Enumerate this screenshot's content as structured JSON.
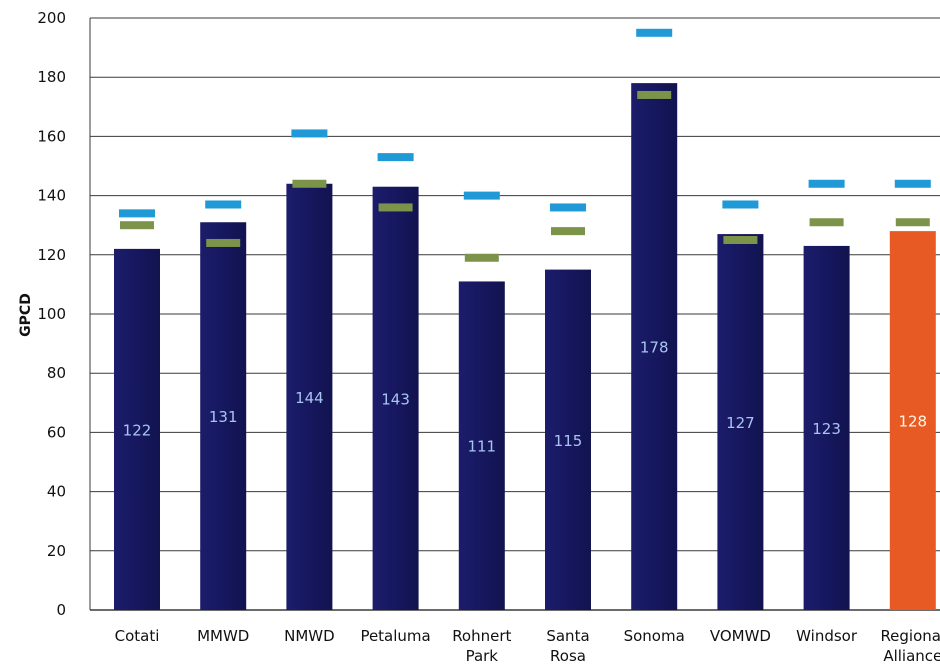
{
  "chart_data": {
    "type": "bar",
    "title": "",
    "xlabel": "",
    "ylabel": "GPCD",
    "ylim": [
      0,
      200
    ],
    "yticks": [
      "0",
      "20",
      "40",
      "60",
      "80",
      "100",
      "120",
      "140",
      "160",
      "180",
      "200"
    ],
    "grid": true,
    "categories": [
      [
        "Cotati"
      ],
      [
        "MMWD"
      ],
      [
        "NMWD"
      ],
      [
        "Petaluma"
      ],
      [
        "Rohnert",
        "Park"
      ],
      [
        "Santa",
        "Rosa"
      ],
      [
        "Sonoma"
      ],
      [
        "VOMWD"
      ],
      [
        "Windsor"
      ],
      [
        "Regional",
        "Alliance"
      ]
    ],
    "series": [
      {
        "values": [
          122,
          131,
          144,
          143,
          111,
          115,
          178,
          127,
          123,
          128
        ]
      },
      {
        "values": [
          130,
          124,
          144,
          136,
          119,
          128,
          174,
          125,
          131,
          131
        ]
      },
      {
        "values": [
          134,
          137,
          161,
          153,
          140,
          136,
          195,
          137,
          144,
          144
        ]
      }
    ],
    "data_labels": [
      "122",
      "131",
      "144",
      "143",
      "111",
      "115",
      "178",
      "127",
      "123",
      "128"
    ],
    "colors": {
      "bar": "#16175f",
      "bar_highlight": "#e85a23",
      "green_marker": "#7c944a",
      "blue_marker": "#1f9ad6",
      "label_on_dark": "#a9c4f0",
      "label_on_orange": "#fff3e6",
      "gridline": "#3a3a3a"
    },
    "highlight_index": 9
  }
}
